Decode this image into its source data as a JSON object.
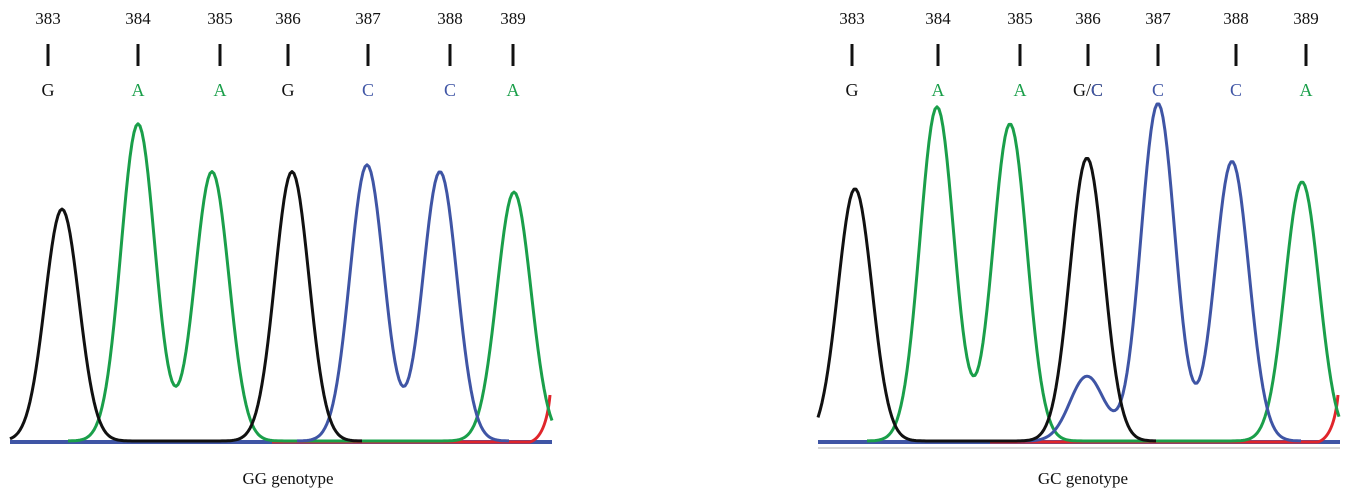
{
  "colors": {
    "G": "#111111",
    "A": "#1a9f4a",
    "C": "#3f55a5",
    "T": "#e0252b"
  },
  "chart_data": [
    {
      "type": "line",
      "subtype": "sequencing-chromatogram",
      "caption": "GG genotype",
      "positions": [
        "383",
        "384",
        "385",
        "386",
        "387",
        "388",
        "389"
      ],
      "calls": [
        "G",
        "A",
        "A",
        "G",
        "C",
        "C",
        "A"
      ],
      "peaks": [
        {
          "position": 383,
          "base": "G",
          "intensity": 0.68
        },
        {
          "position": 384,
          "base": "A",
          "intensity": 0.93
        },
        {
          "position": 385,
          "base": "A",
          "intensity": 0.79
        },
        {
          "position": 386,
          "base": "G",
          "intensity": 0.79
        },
        {
          "position": 387,
          "base": "C",
          "intensity": 0.81
        },
        {
          "position": 388,
          "base": "C",
          "intensity": 0.79
        },
        {
          "position": 389,
          "base": "A",
          "intensity": 0.73
        }
      ]
    },
    {
      "type": "line",
      "subtype": "sequencing-chromatogram",
      "caption": "GC genotype",
      "positions": [
        "383",
        "384",
        "385",
        "386",
        "387",
        "388",
        "389"
      ],
      "calls": [
        "G",
        "A",
        "A",
        "G/C",
        "C",
        "C",
        "A"
      ],
      "peaks": [
        {
          "position": 383,
          "base": "G",
          "intensity": 0.74
        },
        {
          "position": 384,
          "base": "A",
          "intensity": 0.98
        },
        {
          "position": 385,
          "base": "A",
          "intensity": 0.93
        },
        {
          "position": 386,
          "base": "G",
          "intensity": 0.83
        },
        {
          "position": 386,
          "base": "C",
          "intensity": 0.19
        },
        {
          "position": 387,
          "base": "C",
          "intensity": 0.99
        },
        {
          "position": 388,
          "base": "C",
          "intensity": 0.82
        },
        {
          "position": 389,
          "base": "A",
          "intensity": 0.76
        }
      ]
    }
  ]
}
